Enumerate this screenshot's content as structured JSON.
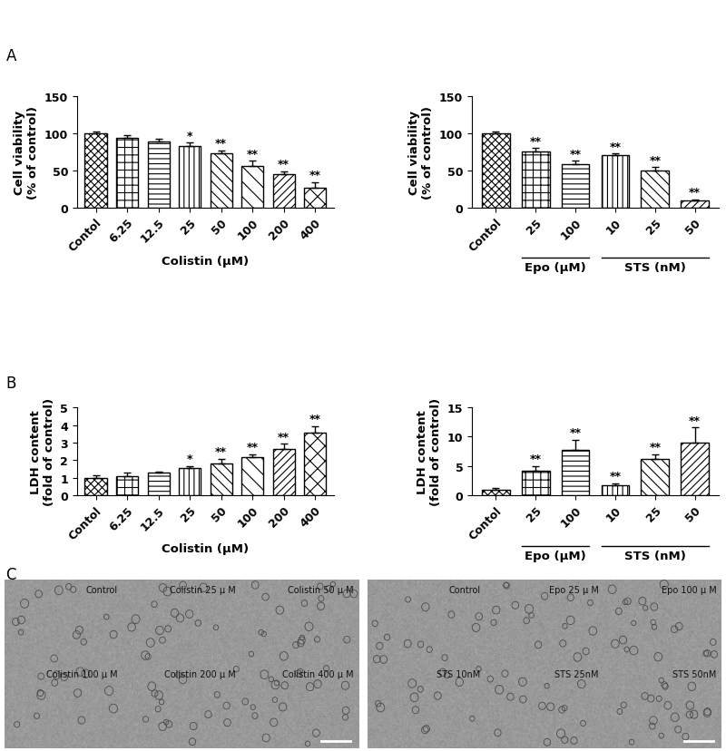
{
  "panel_labels": [
    "A",
    "B",
    "C"
  ],
  "chart_data": [
    {
      "type": "bar",
      "ylabel": "Cell viability\n(% of control)",
      "xlabel": "Colistin (μM)",
      "categories": [
        "Contol",
        "6.25",
        "12.5",
        "25",
        "50",
        "100",
        "200",
        "400"
      ],
      "values": [
        100,
        94,
        89,
        83,
        73,
        56,
        45,
        27
      ],
      "errors": [
        2,
        3,
        3,
        4,
        4,
        7,
        4,
        7
      ],
      "significance": [
        null,
        null,
        null,
        "*",
        "**",
        "**",
        "**",
        "**"
      ],
      "color": "#ffffff",
      "ylim": [
        0,
        150
      ],
      "yticks": [
        0,
        50,
        100,
        150
      ]
    },
    {
      "type": "bar",
      "ylabel": "Cell viability\n(% of control)",
      "categories": [
        "Contol",
        "25",
        "100",
        "10",
        "25",
        "50"
      ],
      "values": [
        100,
        75,
        58,
        70,
        50,
        9
      ],
      "errors": [
        2,
        5,
        5,
        3,
        4,
        2
      ],
      "significance": [
        null,
        "**",
        "**",
        "**",
        "**",
        "**"
      ],
      "groups": [
        {
          "label": "Epo (μM)",
          "categories": [
            1,
            2
          ]
        },
        {
          "label": "STS (nM)",
          "categories": [
            3,
            4,
            5
          ]
        }
      ],
      "color": "#ffffff",
      "ylim": [
        0,
        150
      ],
      "yticks": [
        0,
        50,
        100,
        150
      ]
    },
    {
      "type": "bar",
      "ylabel": "LDH content\n(fold of control)",
      "xlabel": "Colistin (μM)",
      "categories": [
        "Contol",
        "6.25",
        "12.5",
        "25",
        "50",
        "100",
        "200",
        "400"
      ],
      "values": [
        1.0,
        1.1,
        1.28,
        1.55,
        1.8,
        2.17,
        2.65,
        3.55
      ],
      "errors": [
        0.13,
        0.2,
        0.08,
        0.13,
        0.28,
        0.17,
        0.3,
        0.4
      ],
      "significance": [
        null,
        null,
        null,
        "*",
        "**",
        "**",
        "**",
        "**"
      ],
      "color": "#ffffff",
      "ylim": [
        0,
        5
      ],
      "yticks": [
        0,
        1,
        2,
        3,
        4,
        5
      ]
    },
    {
      "type": "bar",
      "ylabel": "LDH content\n(fold of control)",
      "categories": [
        "Contol",
        "25",
        "100",
        "10",
        "25",
        "50"
      ],
      "values": [
        1.0,
        4.2,
        7.8,
        1.8,
        6.2,
        9.0
      ],
      "errors": [
        0.2,
        0.8,
        1.7,
        0.3,
        0.8,
        2.6
      ],
      "significance": [
        null,
        "**",
        "**",
        "**",
        "**",
        "**"
      ],
      "groups": [
        {
          "label": "Epo (μM)",
          "categories": [
            1,
            2
          ]
        },
        {
          "label": "STS (nM)",
          "categories": [
            3,
            4,
            5
          ]
        }
      ],
      "color": "#ffffff",
      "ylim": [
        0,
        15
      ],
      "yticks": [
        0,
        5,
        10,
        15
      ]
    }
  ],
  "micrographs": [
    {
      "labels": [
        "Control",
        "Colistin 25 μ M",
        "Colistin 50 μ M",
        "Colistin 100 μ M",
        "Colistin 200 μ M",
        "Colistin 400 μ M"
      ]
    },
    {
      "labels": [
        "Control",
        "Epo 25 μ M",
        "Epo 100 μ M",
        "STS 10nM",
        "STS 25nM",
        "STS 50nM"
      ]
    }
  ]
}
